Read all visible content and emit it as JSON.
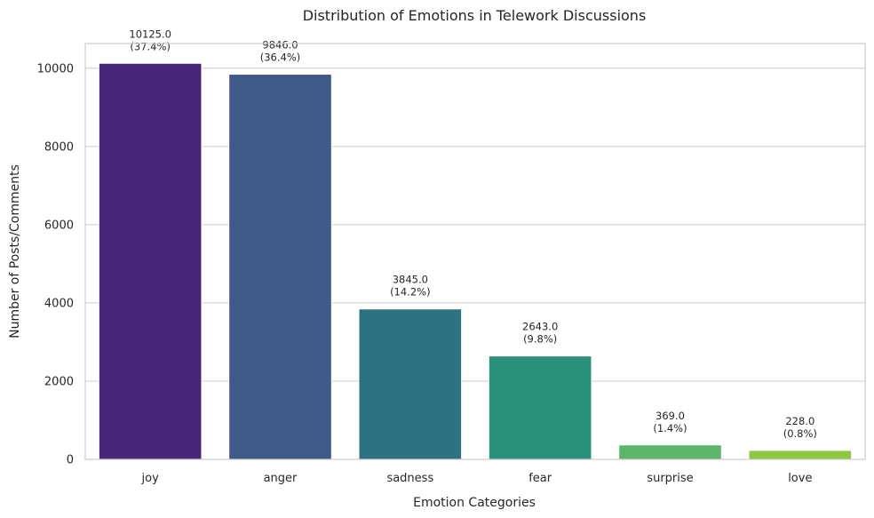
{
  "chart_data": {
    "type": "bar",
    "title": "Distribution of Emotions in Telework Discussions",
    "xlabel": "Emotion Categories",
    "ylabel": "Number of Posts/Comments",
    "categories": [
      "joy",
      "anger",
      "sadness",
      "fear",
      "surprise",
      "love"
    ],
    "values": [
      10125,
      9846,
      3845,
      2643,
      369,
      228
    ],
    "data_labels": [
      [
        "10125.0",
        "(37.4%)"
      ],
      [
        "9846.0",
        "(36.4%)"
      ],
      [
        "3845.0",
        "(14.2%)"
      ],
      [
        "2643.0",
        "(9.8%)"
      ],
      [
        "369.0",
        "(1.4%)"
      ],
      [
        "228.0",
        "(0.8%)"
      ]
    ],
    "colors": [
      "#482677",
      "#3f5a86",
      "#2d7280",
      "#2a9079",
      "#5cb56a",
      "#8ec63f"
    ],
    "yticks": [
      0,
      2000,
      4000,
      6000,
      8000,
      10000
    ],
    "ytick_labels": [
      "0",
      "2000",
      "4000",
      "6000",
      "8000",
      "10000"
    ],
    "ylim": [
      0,
      10631
    ],
    "grid": true
  }
}
